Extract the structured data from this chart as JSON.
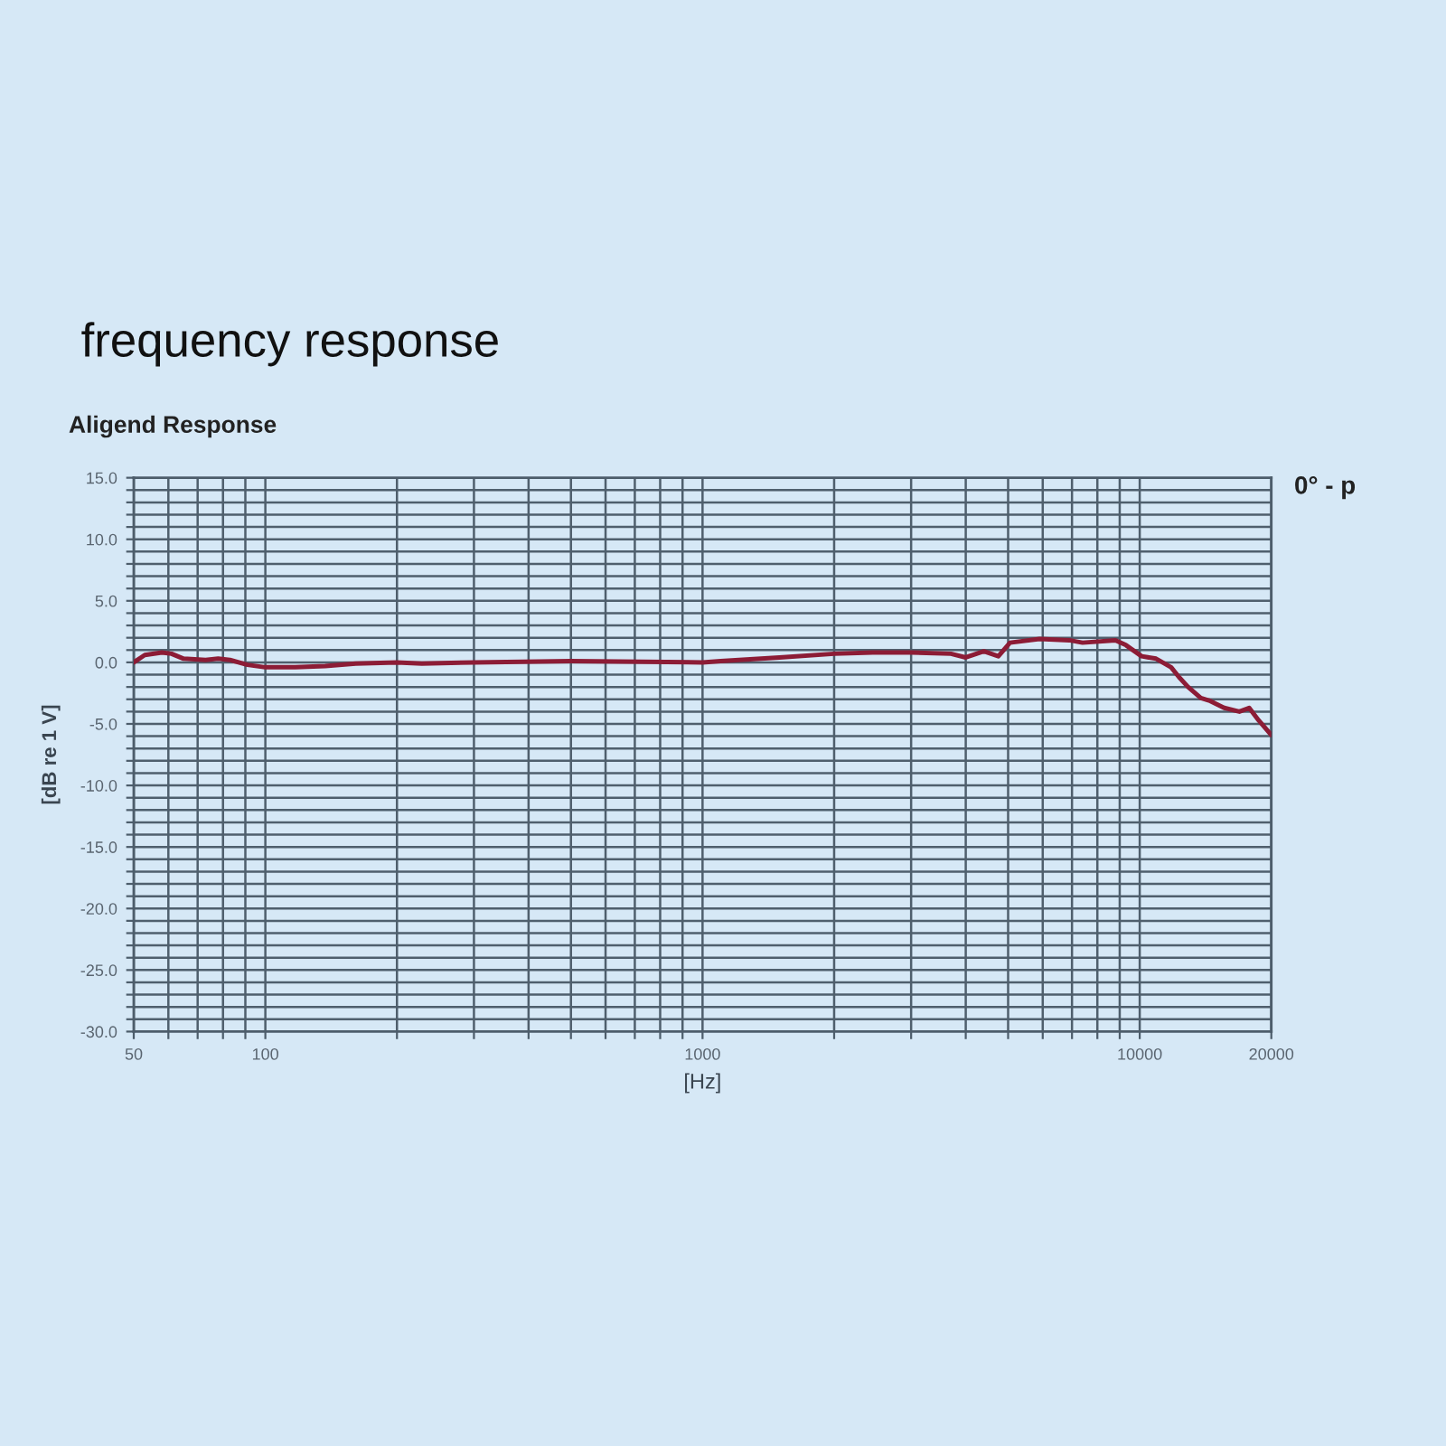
{
  "chart_data": {
    "type": "line",
    "title": "frequency response",
    "subtitle": "Aligend Response",
    "xlabel": "[Hz]",
    "ylabel": "[dB re 1 V]",
    "annotations": [
      "0° - p"
    ],
    "x": [
      50,
      53,
      58,
      61,
      65,
      73,
      78,
      83,
      91,
      100,
      117,
      137,
      161,
      200,
      228,
      300,
      500,
      1000,
      1100,
      1500,
      2000,
      2450,
      3000,
      3700,
      4000,
      4400,
      4750,
      5050,
      5900,
      6900,
      7400,
      8800,
      9300,
      10100,
      10900,
      11800,
      12300,
      12900,
      13800,
      14400,
      15600,
      16900,
      17800,
      18700,
      20000
    ],
    "series": [
      {
        "color": "#8c1c36",
        "values": [
          0.0,
          0.6,
          0.8,
          0.7,
          0.3,
          0.2,
          0.3,
          0.2,
          -0.2,
          -0.4,
          -0.4,
          -0.3,
          -0.1,
          0.0,
          -0.1,
          0.0,
          0.1,
          0.0,
          0.1,
          0.4,
          0.7,
          0.8,
          0.8,
          0.7,
          0.4,
          0.9,
          0.5,
          1.6,
          1.9,
          1.8,
          1.6,
          1.8,
          1.4,
          0.5,
          0.3,
          -0.4,
          -1.2,
          -2.0,
          -2.9,
          -3.1,
          -3.7,
          -4.0,
          -3.7,
          -4.7,
          -5.9
        ]
      }
    ],
    "log": "x",
    "xlim": [
      50,
      20000
    ],
    "ylim": [
      -30,
      15
    ],
    "xticks": [
      50,
      {
        "value": 60,
        "label": null
      },
      {
        "value": 70,
        "label": null
      },
      {
        "value": 80,
        "label": null
      },
      {
        "value": 90,
        "label": null
      },
      100,
      {
        "value": 200,
        "label": null
      },
      {
        "value": 300,
        "label": null
      },
      {
        "value": 400,
        "label": null
      },
      {
        "value": 500,
        "label": null
      },
      {
        "value": 600,
        "label": null
      },
      {
        "value": 700,
        "label": null
      },
      {
        "value": 800,
        "label": null
      },
      {
        "value": 900,
        "label": null
      },
      1000,
      {
        "value": 2000,
        "label": null
      },
      {
        "value": 3000,
        "label": null
      },
      {
        "value": 4000,
        "label": null
      },
      {
        "value": 5000,
        "label": null
      },
      {
        "value": 6000,
        "label": null
      },
      {
        "value": 7000,
        "label": null
      },
      {
        "value": 8000,
        "label": null
      },
      {
        "value": 9000,
        "label": null
      },
      10000,
      20000
    ],
    "yticks": [
      {
        "value": 15,
        "label": "15.0"
      },
      {
        "value": 14,
        "label": null
      },
      {
        "value": 13,
        "label": null
      },
      {
        "value": 12,
        "label": null
      },
      {
        "value": 11,
        "label": null
      },
      {
        "value": 10,
        "label": "10.0"
      },
      {
        "value": 9,
        "label": null
      },
      {
        "value": 8,
        "label": null
      },
      {
        "value": 7,
        "label": null
      },
      {
        "value": 6,
        "label": null
      },
      {
        "value": 5,
        "label": "5.0"
      },
      {
        "value": 4,
        "label": null
      },
      {
        "value": 3,
        "label": null
      },
      {
        "value": 2,
        "label": null
      },
      {
        "value": 1,
        "label": null
      },
      {
        "value": 0,
        "label": "0.0"
      },
      {
        "value": -1,
        "label": null
      },
      {
        "value": -2,
        "label": null
      },
      {
        "value": -3,
        "label": null
      },
      {
        "value": -4,
        "label": null
      },
      {
        "value": -5,
        "label": "-5.0"
      },
      {
        "value": -6,
        "label": null
      },
      {
        "value": -7,
        "label": null
      },
      {
        "value": -8,
        "label": null
      },
      {
        "value": -9,
        "label": null
      },
      {
        "value": -10,
        "label": "-10.0"
      },
      {
        "value": -11,
        "label": null
      },
      {
        "value": -12,
        "label": null
      },
      {
        "value": -13,
        "label": null
      },
      {
        "value": -14,
        "label": null
      },
      {
        "value": -15,
        "label": "-15.0"
      },
      {
        "value": -16,
        "label": null
      },
      {
        "value": -17,
        "label": null
      },
      {
        "value": -18,
        "label": null
      },
      {
        "value": -19,
        "label": null
      },
      {
        "value": -20,
        "label": "-20.0"
      },
      {
        "value": -21,
        "label": null
      },
      {
        "value": -22,
        "label": null
      },
      {
        "value": -23,
        "label": null
      },
      {
        "value": -24,
        "label": null
      },
      {
        "value": -25,
        "label": "-25.0"
      },
      {
        "value": -26,
        "label": null
      },
      {
        "value": -27,
        "label": null
      },
      {
        "value": -28,
        "label": null
      },
      {
        "value": -29,
        "label": null
      },
      {
        "value": -30,
        "label": "-30.0"
      }
    ],
    "grid": true,
    "line_style": "solid"
  }
}
